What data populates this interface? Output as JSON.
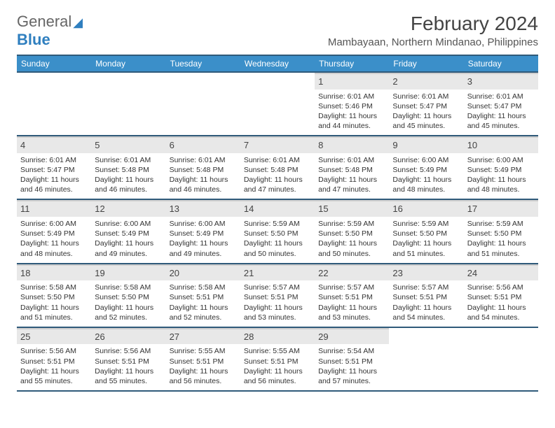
{
  "brand": {
    "line1": "General",
    "line2": "Blue"
  },
  "title": "February 2024",
  "location": "Mambayaan, Northern Mindanao, Philippines",
  "colors": {
    "header_bg": "#3b8fc9",
    "header_border": "#2f5a7a",
    "daynum_bg": "#e8e8e8",
    "daynum_border": "#cfcfcf",
    "brand_blue": "#2f7fbf",
    "text": "#333333",
    "page_bg": "#ffffff"
  },
  "weekdays": [
    "Sunday",
    "Monday",
    "Tuesday",
    "Wednesday",
    "Thursday",
    "Friday",
    "Saturday"
  ],
  "weeks": [
    [
      null,
      null,
      null,
      null,
      {
        "n": "1",
        "sunrise": "6:01 AM",
        "sunset": "5:46 PM",
        "daylight": "11 hours and 44 minutes."
      },
      {
        "n": "2",
        "sunrise": "6:01 AM",
        "sunset": "5:47 PM",
        "daylight": "11 hours and 45 minutes."
      },
      {
        "n": "3",
        "sunrise": "6:01 AM",
        "sunset": "5:47 PM",
        "daylight": "11 hours and 45 minutes."
      }
    ],
    [
      {
        "n": "4",
        "sunrise": "6:01 AM",
        "sunset": "5:47 PM",
        "daylight": "11 hours and 46 minutes."
      },
      {
        "n": "5",
        "sunrise": "6:01 AM",
        "sunset": "5:48 PM",
        "daylight": "11 hours and 46 minutes."
      },
      {
        "n": "6",
        "sunrise": "6:01 AM",
        "sunset": "5:48 PM",
        "daylight": "11 hours and 46 minutes."
      },
      {
        "n": "7",
        "sunrise": "6:01 AM",
        "sunset": "5:48 PM",
        "daylight": "11 hours and 47 minutes."
      },
      {
        "n": "8",
        "sunrise": "6:01 AM",
        "sunset": "5:48 PM",
        "daylight": "11 hours and 47 minutes."
      },
      {
        "n": "9",
        "sunrise": "6:00 AM",
        "sunset": "5:49 PM",
        "daylight": "11 hours and 48 minutes."
      },
      {
        "n": "10",
        "sunrise": "6:00 AM",
        "sunset": "5:49 PM",
        "daylight": "11 hours and 48 minutes."
      }
    ],
    [
      {
        "n": "11",
        "sunrise": "6:00 AM",
        "sunset": "5:49 PM",
        "daylight": "11 hours and 48 minutes."
      },
      {
        "n": "12",
        "sunrise": "6:00 AM",
        "sunset": "5:49 PM",
        "daylight": "11 hours and 49 minutes."
      },
      {
        "n": "13",
        "sunrise": "6:00 AM",
        "sunset": "5:49 PM",
        "daylight": "11 hours and 49 minutes."
      },
      {
        "n": "14",
        "sunrise": "5:59 AM",
        "sunset": "5:50 PM",
        "daylight": "11 hours and 50 minutes."
      },
      {
        "n": "15",
        "sunrise": "5:59 AM",
        "sunset": "5:50 PM",
        "daylight": "11 hours and 50 minutes."
      },
      {
        "n": "16",
        "sunrise": "5:59 AM",
        "sunset": "5:50 PM",
        "daylight": "11 hours and 51 minutes."
      },
      {
        "n": "17",
        "sunrise": "5:59 AM",
        "sunset": "5:50 PM",
        "daylight": "11 hours and 51 minutes."
      }
    ],
    [
      {
        "n": "18",
        "sunrise": "5:58 AM",
        "sunset": "5:50 PM",
        "daylight": "11 hours and 51 minutes."
      },
      {
        "n": "19",
        "sunrise": "5:58 AM",
        "sunset": "5:50 PM",
        "daylight": "11 hours and 52 minutes."
      },
      {
        "n": "20",
        "sunrise": "5:58 AM",
        "sunset": "5:51 PM",
        "daylight": "11 hours and 52 minutes."
      },
      {
        "n": "21",
        "sunrise": "5:57 AM",
        "sunset": "5:51 PM",
        "daylight": "11 hours and 53 minutes."
      },
      {
        "n": "22",
        "sunrise": "5:57 AM",
        "sunset": "5:51 PM",
        "daylight": "11 hours and 53 minutes."
      },
      {
        "n": "23",
        "sunrise": "5:57 AM",
        "sunset": "5:51 PM",
        "daylight": "11 hours and 54 minutes."
      },
      {
        "n": "24",
        "sunrise": "5:56 AM",
        "sunset": "5:51 PM",
        "daylight": "11 hours and 54 minutes."
      }
    ],
    [
      {
        "n": "25",
        "sunrise": "5:56 AM",
        "sunset": "5:51 PM",
        "daylight": "11 hours and 55 minutes."
      },
      {
        "n": "26",
        "sunrise": "5:56 AM",
        "sunset": "5:51 PM",
        "daylight": "11 hours and 55 minutes."
      },
      {
        "n": "27",
        "sunrise": "5:55 AM",
        "sunset": "5:51 PM",
        "daylight": "11 hours and 56 minutes."
      },
      {
        "n": "28",
        "sunrise": "5:55 AM",
        "sunset": "5:51 PM",
        "daylight": "11 hours and 56 minutes."
      },
      {
        "n": "29",
        "sunrise": "5:54 AM",
        "sunset": "5:51 PM",
        "daylight": "11 hours and 57 minutes."
      },
      null,
      null
    ]
  ],
  "labels": {
    "sunrise": "Sunrise:",
    "sunset": "Sunset:",
    "daylight": "Daylight:"
  }
}
